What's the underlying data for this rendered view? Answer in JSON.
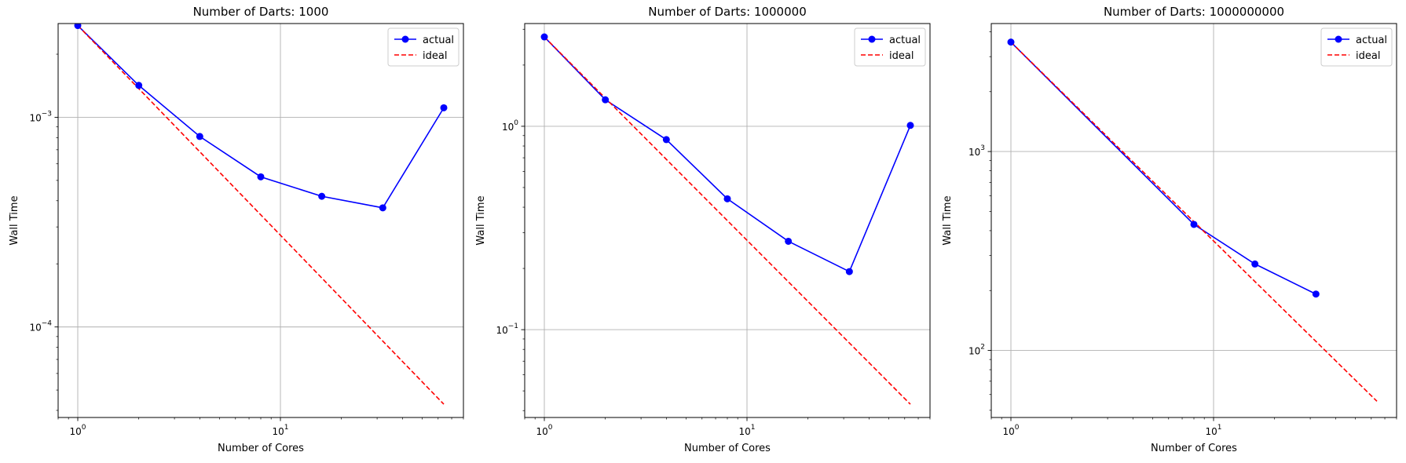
{
  "chart_data": [
    {
      "type": "line",
      "title": "Number of Darts: 1000",
      "xlabel": "Number of Cores",
      "ylabel": "Wall Time",
      "xscale": "log",
      "yscale": "log",
      "xlim": [
        0.8,
        80
      ],
      "ylim": [
        3.7e-05,
        0.0028
      ],
      "xticks": [
        {
          "base": "10",
          "exp": "0",
          "value": 1
        },
        {
          "base": "10",
          "exp": "1",
          "value": 10
        }
      ],
      "yticks": [
        {
          "base": "10",
          "exp": "−4",
          "value": 0.0001
        },
        {
          "base": "10",
          "exp": "−3",
          "value": 0.001
        }
      ],
      "grid": true,
      "legend_position": "top-right",
      "series": [
        {
          "name": "actual",
          "style": "solid",
          "marker": "circle",
          "color": "#0000ff",
          "x": [
            1,
            2,
            4,
            8,
            16,
            32,
            64
          ],
          "y": [
            0.00274,
            0.00142,
            0.00081,
            0.00052,
            0.00042,
            0.00037,
            0.00111
          ]
        },
        {
          "name": "ideal",
          "style": "dashed",
          "marker": "none",
          "color": "#ff0000",
          "x": [
            1,
            64
          ],
          "y": [
            0.00274,
            4.28e-05
          ]
        }
      ]
    },
    {
      "type": "line",
      "title": "Number of Darts: 1000000",
      "xlabel": "Number of Cores",
      "ylabel": "Wall Time",
      "xscale": "log",
      "yscale": "log",
      "xlim": [
        0.8,
        80
      ],
      "ylim": [
        0.037,
        3.2
      ],
      "xticks": [
        {
          "base": "10",
          "exp": "0",
          "value": 1
        },
        {
          "base": "10",
          "exp": "1",
          "value": 10
        }
      ],
      "yticks": [
        {
          "base": "10",
          "exp": "−1",
          "value": 0.1
        },
        {
          "base": "10",
          "exp": "0",
          "value": 1
        }
      ],
      "grid": true,
      "legend_position": "top-right",
      "series": [
        {
          "name": "actual",
          "style": "solid",
          "marker": "circle",
          "color": "#0000ff",
          "x": [
            1,
            2,
            4,
            8,
            16,
            32,
            64
          ],
          "y": [
            2.75,
            1.35,
            0.86,
            0.44,
            0.272,
            0.193,
            1.01
          ]
        },
        {
          "name": "ideal",
          "style": "dashed",
          "marker": "none",
          "color": "#ff0000",
          "x": [
            1,
            64
          ],
          "y": [
            2.75,
            0.043
          ]
        }
      ]
    },
    {
      "type": "line",
      "title": "Number of Darts: 1000000000",
      "xlabel": "Number of Cores",
      "ylabel": "Wall Time",
      "xscale": "log",
      "yscale": "log",
      "xlim": [
        0.8,
        80
      ],
      "ylim": [
        46,
        4400
      ],
      "xticks": [
        {
          "base": "10",
          "exp": "0",
          "value": 1
        },
        {
          "base": "10",
          "exp": "1",
          "value": 10
        }
      ],
      "yticks": [
        {
          "base": "10",
          "exp": "2",
          "value": 100
        },
        {
          "base": "10",
          "exp": "3",
          "value": 1000
        }
      ],
      "grid": true,
      "legend_position": "top-right",
      "series": [
        {
          "name": "actual",
          "style": "solid",
          "marker": "circle",
          "color": "#0000ff",
          "x": [
            1,
            8,
            16,
            32
          ],
          "y": [
            3550,
            430,
            272,
            192
          ]
        },
        {
          "name": "ideal",
          "style": "dashed",
          "marker": "none",
          "color": "#ff0000",
          "x": [
            1,
            64
          ],
          "y": [
            3550,
            55.5
          ]
        }
      ]
    }
  ]
}
